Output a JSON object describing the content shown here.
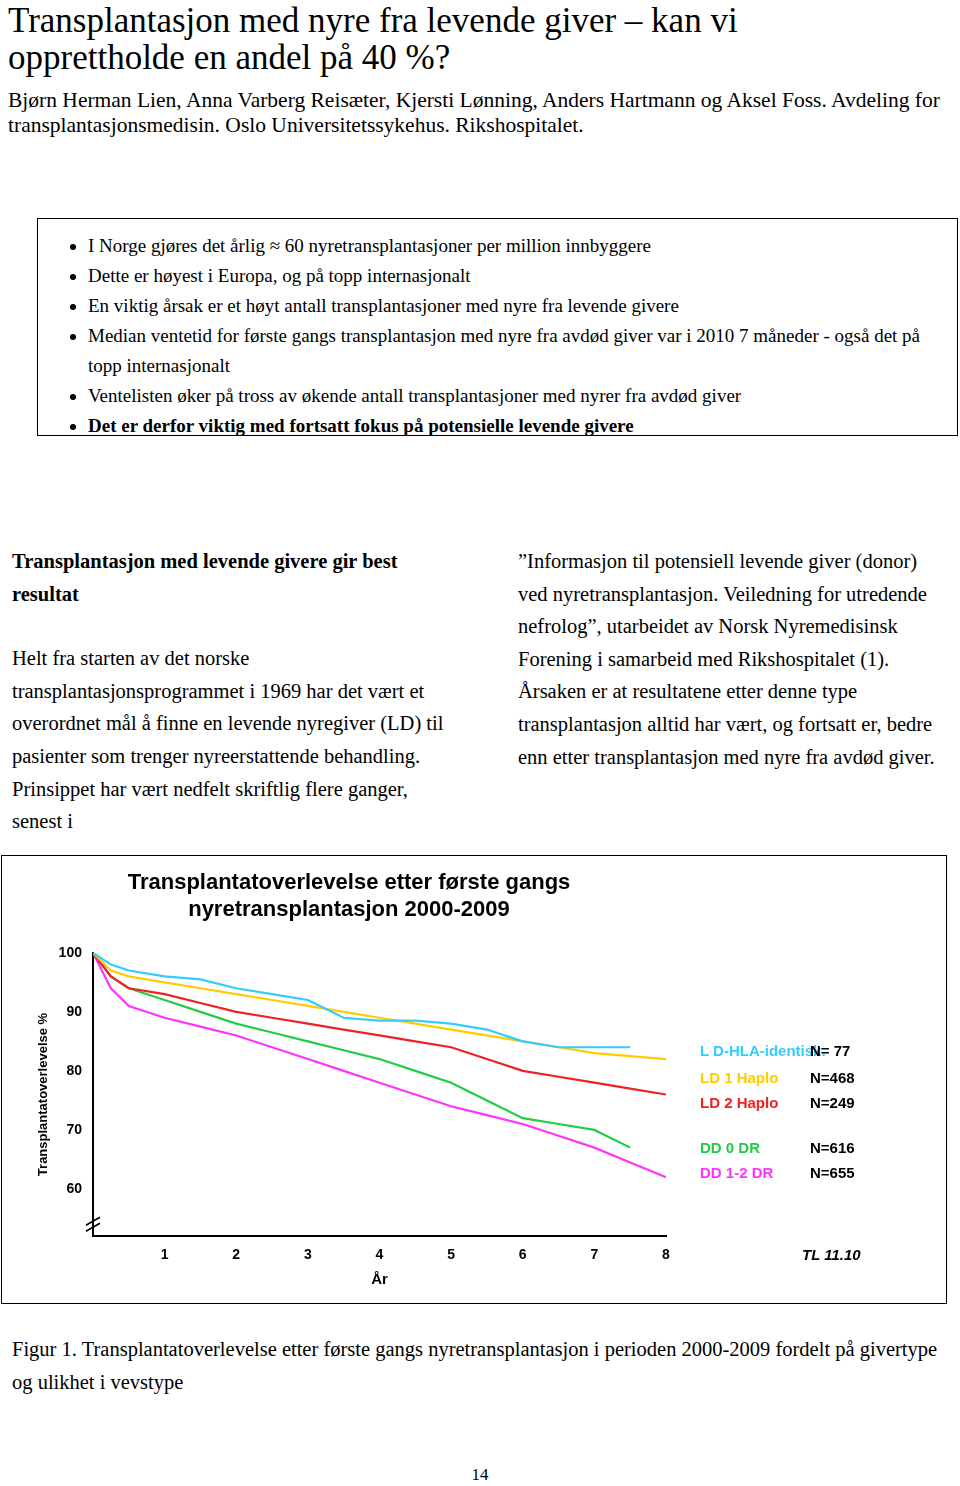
{
  "header": {
    "title": "Transplantasjon med nyre fra levende giver – kan vi opprettholde en andel på 40 %?",
    "authors": "Bjørn Herman Lien, Anna Varberg Reisæter, Kjersti Lønning, Anders Hartmann og Aksel Foss. Avdeling for transplantasjonsmedisin. Oslo Universitetssykehus. Rikshospitalet."
  },
  "bullets": [
    "I Norge gjøres det årlig ≈ 60 nyretransplantasjoner per million innbyggere",
    "Dette er høyest i Europa, og på topp internasjonalt",
    "En viktig årsak er et høyt antall transplantasjoner med nyre fra levende givere",
    "Median ventetid for første gangs transplantasjon med nyre fra avdød giver var i 2010 7 måneder - også det på topp internasjonalt",
    "Ventelisten øker på tross av økende antall transplantasjoner med nyrer fra avdød giver"
  ],
  "conclusion": "Det er derfor viktig med fortsatt fokus på potensielle levende givere",
  "left_column": {
    "heading": "Transplantasjon med levende givere gir best resultat",
    "text": "Helt fra starten av det norske transplantasjonsprogrammet i 1969 har det vært et overordnet mål å finne en levende nyregiver (LD) til pasienter som trenger nyreerstattende behandling. Prinsippet har vært nedfelt skriftlig flere ganger, senest i"
  },
  "right_column": {
    "text": "”Informasjon til potensiell levende giver (donor) ved nyretransplantasjon. Veiledning for utredende nefrolog”, utarbeidet av Norsk Nyremedisinsk Forening i samarbeid med Rikshospitalet (1). Årsaken er at resultatene etter denne type transplantasjon alltid har vært, og fortsatt er, bedre enn etter transplantasjon med nyre fra avdød giver."
  },
  "chart_data": {
    "type": "line",
    "title": [
      "Transplantatoverlevelse etter første gangs",
      "nyretransplantasjon 2000-2009"
    ],
    "x_label": "År",
    "y_label": "Transplantatoverlevelse %",
    "annotation": "TL 11.10",
    "x": [
      0,
      0.25,
      0.5,
      1,
      1.5,
      2,
      2.5,
      3,
      3.5,
      4,
      4.5,
      5,
      5.5,
      6,
      6.5,
      7,
      7.5,
      8
    ],
    "series": [
      {
        "name": "L D-HLA-identisk.",
        "n_label": "N= 77",
        "color": "#33ccff",
        "values": [
          100,
          98,
          97,
          96,
          95.5,
          94,
          93,
          92,
          89,
          88.5,
          88.5,
          88,
          87,
          85,
          84,
          84,
          84,
          null
        ]
      },
      {
        "name": "LD 1 Haplo",
        "n_label": "N=468",
        "color": "#ffcc00",
        "values": [
          100,
          97,
          96,
          95,
          94,
          93,
          92,
          91,
          90,
          89,
          88,
          87,
          86,
          85,
          84,
          83,
          82.5,
          82
        ]
      },
      {
        "name": "LD 2 Haplo",
        "n_label": "N=249",
        "color": "#ee2222",
        "values": [
          100,
          96,
          94,
          93,
          91.5,
          90,
          89,
          88,
          87,
          86,
          85,
          84,
          82,
          80,
          79,
          78,
          77,
          76
        ]
      },
      {
        "name": "DD 0 DR",
        "n_label": "N=616",
        "color": "#22cc44",
        "values": [
          100,
          96,
          94,
          92,
          90,
          88,
          86.5,
          85,
          83.5,
          82,
          80,
          78,
          75,
          72,
          71,
          70,
          67,
          null
        ]
      },
      {
        "name": "DD 1-2 DR",
        "n_label": "N=655",
        "color": "#ff33ff",
        "values": [
          100,
          94,
          91,
          89,
          87.5,
          86,
          84,
          82,
          80,
          78,
          76,
          74,
          72.5,
          71,
          69,
          67,
          64.5,
          62
        ]
      }
    ],
    "xlim": [
      0,
      8
    ],
    "xticks": [
      1,
      2,
      3,
      4,
      5,
      6,
      7,
      8
    ],
    "ylim": [
      52,
      100
    ],
    "yticks": [
      60,
      70,
      80,
      90,
      100
    ],
    "grid": false,
    "legend": "right",
    "line_style": "solid",
    "marker": "none"
  },
  "caption": "Figur 1. Transplantatoverlevelse etter første gangs nyretransplantasjon i perioden 2000-2009 fordelt på givertype og ulikhet i vevstype",
  "page_number": "14"
}
